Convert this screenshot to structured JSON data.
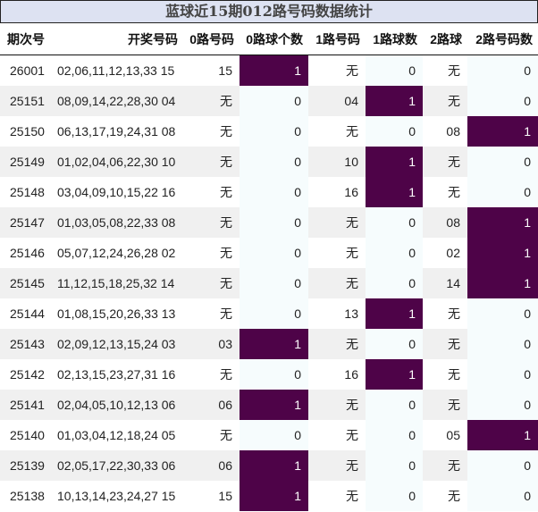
{
  "title": "蓝球近15期012路号码数据统计",
  "columns": [
    "期次号",
    "开奖号码",
    "0路号码",
    "0路球个数",
    "1路号码",
    "1路球数",
    "2路球",
    "2路号码数"
  ],
  "colors": {
    "title_bg": "#dde2f2",
    "hit_bg": "#4e0348",
    "count_bg": "#f6fcfd",
    "stripe_bg": "#f0f0f0"
  },
  "rows": [
    {
      "issue": "26001",
      "numbers": "02,06,11,12,13,33 15",
      "r0": "15",
      "c0": "1",
      "r1": "无",
      "c1": "0",
      "r2": "无",
      "c2": "0"
    },
    {
      "issue": "25151",
      "numbers": "08,09,14,22,28,30 04",
      "r0": "无",
      "c0": "0",
      "r1": "04",
      "c1": "1",
      "r2": "无",
      "c2": "0"
    },
    {
      "issue": "25150",
      "numbers": "06,13,17,19,24,31 08",
      "r0": "无",
      "c0": "0",
      "r1": "无",
      "c1": "0",
      "r2": "08",
      "c2": "1"
    },
    {
      "issue": "25149",
      "numbers": "01,02,04,06,22,30 10",
      "r0": "无",
      "c0": "0",
      "r1": "10",
      "c1": "1",
      "r2": "无",
      "c2": "0"
    },
    {
      "issue": "25148",
      "numbers": "03,04,09,10,15,22 16",
      "r0": "无",
      "c0": "0",
      "r1": "16",
      "c1": "1",
      "r2": "无",
      "c2": "0"
    },
    {
      "issue": "25147",
      "numbers": "01,03,05,08,22,33 08",
      "r0": "无",
      "c0": "0",
      "r1": "无",
      "c1": "0",
      "r2": "08",
      "c2": "1"
    },
    {
      "issue": "25146",
      "numbers": "05,07,12,24,26,28 02",
      "r0": "无",
      "c0": "0",
      "r1": "无",
      "c1": "0",
      "r2": "02",
      "c2": "1"
    },
    {
      "issue": "25145",
      "numbers": "11,12,15,18,25,32 14",
      "r0": "无",
      "c0": "0",
      "r1": "无",
      "c1": "0",
      "r2": "14",
      "c2": "1"
    },
    {
      "issue": "25144",
      "numbers": "01,08,15,20,26,33 13",
      "r0": "无",
      "c0": "0",
      "r1": "13",
      "c1": "1",
      "r2": "无",
      "c2": "0"
    },
    {
      "issue": "25143",
      "numbers": "02,09,12,13,15,24 03",
      "r0": "03",
      "c0": "1",
      "r1": "无",
      "c1": "0",
      "r2": "无",
      "c2": "0"
    },
    {
      "issue": "25142",
      "numbers": "02,13,15,23,27,31 16",
      "r0": "无",
      "c0": "0",
      "r1": "16",
      "c1": "1",
      "r2": "无",
      "c2": "0"
    },
    {
      "issue": "25141",
      "numbers": "02,04,05,10,12,13 06",
      "r0": "06",
      "c0": "1",
      "r1": "无",
      "c1": "0",
      "r2": "无",
      "c2": "0"
    },
    {
      "issue": "25140",
      "numbers": "01,03,04,12,18,24 05",
      "r0": "无",
      "c0": "0",
      "r1": "无",
      "c1": "0",
      "r2": "05",
      "c2": "1"
    },
    {
      "issue": "25139",
      "numbers": "02,05,17,22,30,33 06",
      "r0": "06",
      "c0": "1",
      "r1": "无",
      "c1": "0",
      "r2": "无",
      "c2": "0"
    },
    {
      "issue": "25138",
      "numbers": "10,13,14,23,24,27 15",
      "r0": "15",
      "c0": "1",
      "r1": "无",
      "c1": "0",
      "r2": "无",
      "c2": "0"
    }
  ]
}
